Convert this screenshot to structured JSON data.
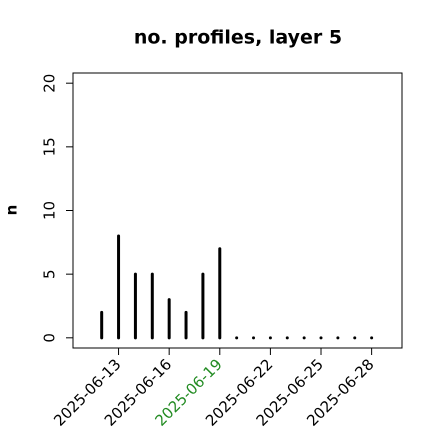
{
  "chart_data": {
    "type": "spike",
    "title": "no. profiles, layer 5",
    "y_label": "n",
    "categories": [
      null,
      "2025-06-13",
      null,
      null,
      "2025-06-16",
      null,
      null,
      "2025-06-19",
      null,
      null,
      "2025-06-22",
      null,
      null,
      "2025-06-25",
      null,
      null,
      "2025-06-28"
    ],
    "values": [
      2,
      8,
      5,
      5,
      3,
      2,
      5,
      7,
      0,
      0,
      0,
      0,
      0,
      0,
      0,
      0,
      0
    ],
    "color": "#000000",
    "xlim": [
      -1.7,
      17.8
    ],
    "ylim": [
      -0.8,
      20.8
    ],
    "yticks": [
      0,
      5,
      10,
      15,
      20
    ],
    "highlight_label": {
      "index": 7,
      "color": "#228b22"
    }
  }
}
